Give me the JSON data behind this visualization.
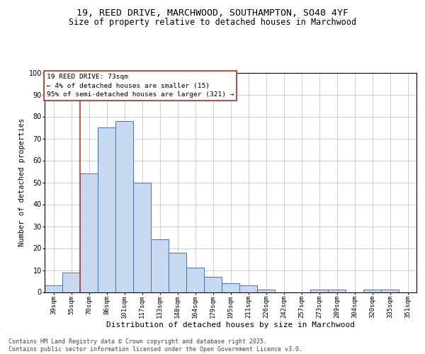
{
  "title_line1": "19, REED DRIVE, MARCHWOOD, SOUTHAMPTON, SO40 4YF",
  "title_line2": "Size of property relative to detached houses in Marchwood",
  "xlabel": "Distribution of detached houses by size in Marchwood",
  "ylabel": "Number of detached properties",
  "categories": [
    "39sqm",
    "55sqm",
    "70sqm",
    "86sqm",
    "101sqm",
    "117sqm",
    "133sqm",
    "148sqm",
    "164sqm",
    "179sqm",
    "195sqm",
    "211sqm",
    "226sqm",
    "242sqm",
    "257sqm",
    "273sqm",
    "289sqm",
    "304sqm",
    "320sqm",
    "335sqm",
    "351sqm"
  ],
  "values": [
    3,
    9,
    54,
    75,
    78,
    50,
    24,
    18,
    11,
    7,
    4,
    3,
    1,
    0,
    0,
    1,
    1,
    0,
    1,
    1,
    0
  ],
  "bar_color": "#c6d9f0",
  "bar_edge_color": "#4472c4",
  "vline_color": "#c0392b",
  "vline_x_index": 2,
  "annotation_text": "19 REED DRIVE: 73sqm\n← 4% of detached houses are smaller (15)\n95% of semi-detached houses are larger (321) →",
  "annotation_box_color": "#ffffff",
  "annotation_box_edge_color": "#c0392b",
  "annotation_fontsize": 6.8,
  "ylim": [
    0,
    100
  ],
  "yticks": [
    0,
    10,
    20,
    30,
    40,
    50,
    60,
    70,
    80,
    90,
    100
  ],
  "grid_color": "#c8c8c8",
  "background_color": "#ffffff",
  "footer": "Contains HM Land Registry data © Crown copyright and database right 2025.\nContains public sector information licensed under the Open Government Licence v3.0.",
  "footer_fontsize": 6.0,
  "title_fontsize1": 9.5,
  "title_fontsize2": 8.5,
  "xlabel_fontsize": 8.0,
  "ylabel_fontsize": 7.5,
  "tick_fontsize": 6.5,
  "ytick_fontsize": 7.0
}
